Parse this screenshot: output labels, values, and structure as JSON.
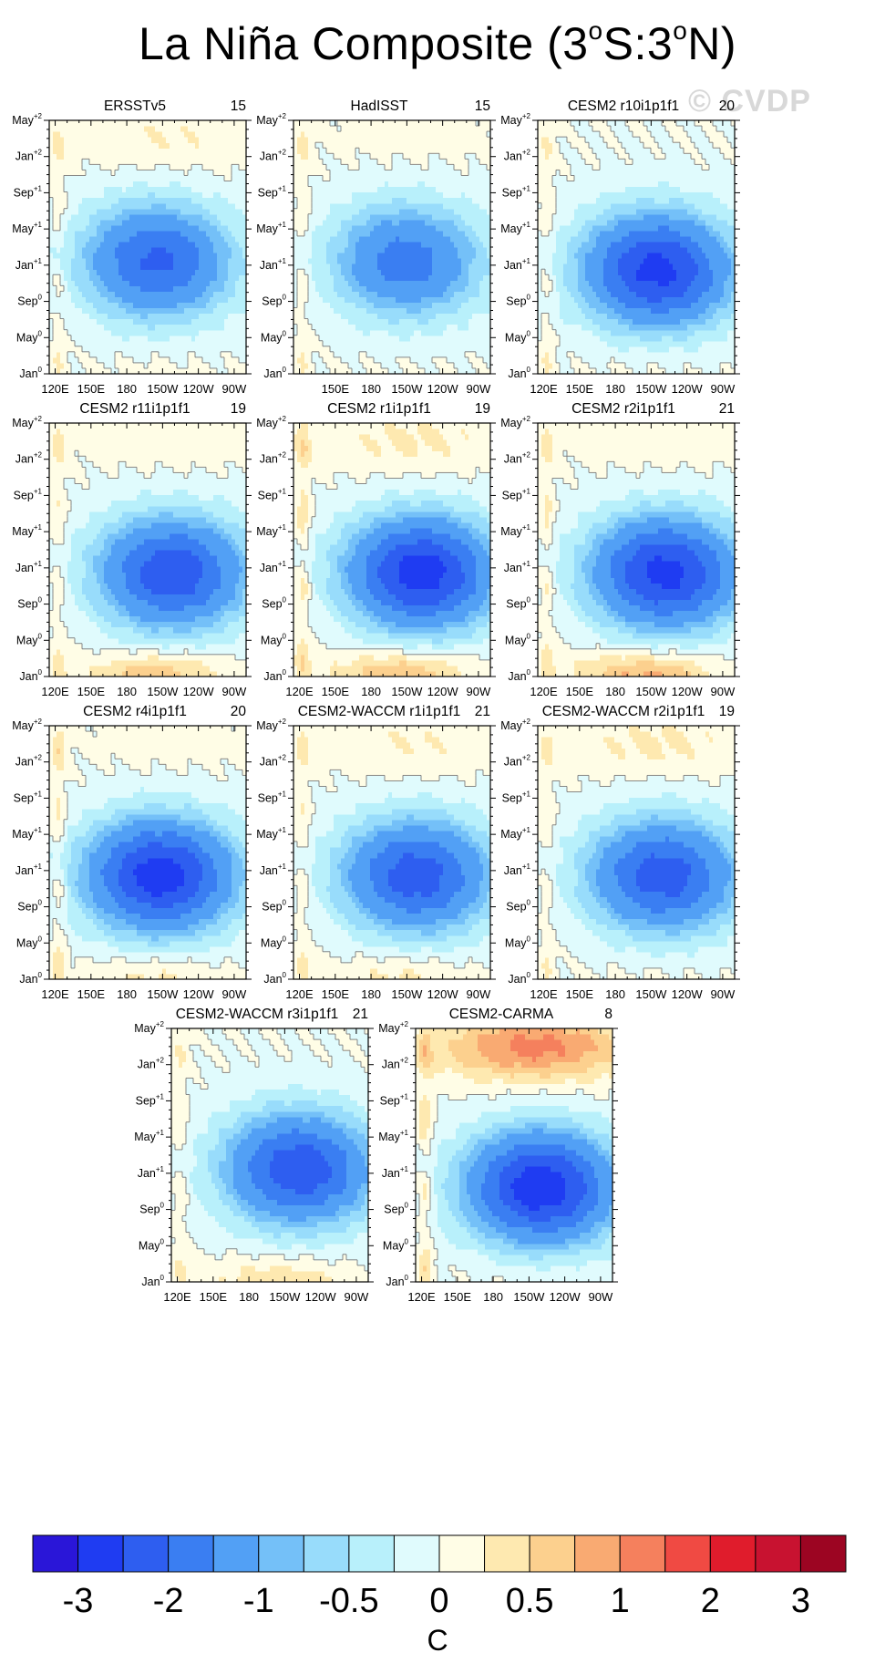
{
  "figure": {
    "title_parts": [
      "La Niña Composite (3",
      "o",
      "S:3",
      "o",
      "N)"
    ],
    "watermark": "© CVDP",
    "units_label": "C"
  },
  "colors": {
    "palette": [
      "#2a16d8",
      "#1f3cf2",
      "#2e5ef0",
      "#3a7ef2",
      "#52a0f5",
      "#74c0f8",
      "#98dcfb",
      "#b8f0fb",
      "#e0fbfd",
      "#fffde6",
      "#fee9b0",
      "#fcd08e",
      "#f9aa72",
      "#f5805d",
      "#f04a43",
      "#e01c2c",
      "#c81230",
      "#9c0522"
    ],
    "contour_line": "#7a7a7a"
  },
  "chart_data": [
    {
      "type": "heatmap",
      "title": "ERSSTv5",
      "count": "15",
      "x_tick_labels": [
        "120E",
        "150E",
        "180",
        "150W",
        "120W",
        "90W"
      ],
      "y_tick_labels": [
        "Jan",
        "May",
        "Sep",
        "Jan",
        "May",
        "Sep",
        "Jan",
        "May"
      ],
      "y_tick_superscripts": [
        "0",
        "0",
        "0",
        "+1",
        "+1",
        "+1",
        "+2",
        "+2"
      ],
      "x_range_lon": [
        115,
        280
      ],
      "y_range_months": [
        0,
        28
      ],
      "anomaly": {
        "core_lon": 205,
        "core_month": 12.5,
        "core_min": -2.1,
        "west_warm": 0.3,
        "winter_plus2_warm": 0.25,
        "spring_warm": 0.1
      }
    },
    {
      "type": "heatmap",
      "title": "HadISST",
      "count": "15",
      "x_tick_labels": [
        "",
        "150E",
        "180",
        "150W",
        "120W",
        "90W"
      ],
      "y_tick_labels": [
        "Jan",
        "May",
        "Sep",
        "Jan",
        "May",
        "Sep",
        "Jan",
        "May"
      ],
      "y_tick_superscripts": [
        "0",
        "0",
        "0",
        "+1",
        "+1",
        "+1",
        "+2",
        "+2"
      ],
      "x_range_lon": [
        115,
        280
      ],
      "y_range_months": [
        0,
        28
      ],
      "anomaly": {
        "core_lon": 210,
        "core_month": 12.5,
        "core_min": -1.75,
        "west_warm": 0.3,
        "winter_plus2_warm": 0.1,
        "spring_warm": 0.05
      }
    },
    {
      "type": "heatmap",
      "title": "CESM2 r10i1p1f1",
      "count": "20",
      "x_tick_labels": [
        "120E",
        "150E",
        "180",
        "150W",
        "120W",
        "90W"
      ],
      "y_tick_labels": [
        "Jan",
        "May",
        "Sep",
        "Jan",
        "May",
        "Sep",
        "Jan",
        "May"
      ],
      "y_tick_superscripts": [
        "0",
        "0",
        "0",
        "+1",
        "+1",
        "+1",
        "+2",
        "+2"
      ],
      "x_range_lon": [
        115,
        280
      ],
      "y_range_months": [
        0,
        28
      ],
      "anomaly": {
        "core_lon": 215,
        "core_month": 11.5,
        "core_min": -2.7,
        "west_warm": 0.3,
        "winter_plus2_warm": 0.0,
        "spring_warm": 0.1
      }
    },
    {
      "type": "heatmap",
      "title": "CESM2 r11i1p1f1",
      "count": "19",
      "x_tick_labels": [
        "120E",
        "150E",
        "180",
        "150W",
        "120W",
        "90W"
      ],
      "y_tick_labels": [
        "Jan",
        "May",
        "Sep",
        "Jan",
        "May",
        "Sep",
        "Jan",
        "May"
      ],
      "y_tick_superscripts": [
        "0",
        "0",
        "0",
        "+1",
        "+1",
        "+1",
        "+2",
        "+2"
      ],
      "x_range_lon": [
        115,
        280
      ],
      "y_range_months": [
        0,
        28
      ],
      "anomaly": {
        "core_lon": 218,
        "core_month": 11.5,
        "core_min": -2.4,
        "west_warm": 0.35,
        "winter_plus2_warm": 0.15,
        "spring_warm": 0.7
      }
    },
    {
      "type": "heatmap",
      "title": "CESM2 r1i1p1f1",
      "count": "19",
      "x_tick_labels": [
        "120E",
        "150E",
        "180",
        "150W",
        "120W",
        "90W"
      ],
      "y_tick_labels": [
        "Jan",
        "May",
        "Sep",
        "Jan",
        "May",
        "Sep",
        "Jan",
        "May"
      ],
      "y_tick_superscripts": [
        "0",
        "0",
        "0",
        "+1",
        "+1",
        "+1",
        "+2",
        "+2"
      ],
      "x_range_lon": [
        115,
        280
      ],
      "y_range_months": [
        0,
        28
      ],
      "anomaly": {
        "core_lon": 222,
        "core_month": 11.5,
        "core_min": -2.8,
        "west_warm": 0.5,
        "winter_plus2_warm": 0.3,
        "spring_warm": 0.8
      }
    },
    {
      "type": "heatmap",
      "title": "CESM2 r2i1p1f1",
      "count": "21",
      "x_tick_labels": [
        "120E",
        "150E",
        "180",
        "150W",
        "120W",
        "90W"
      ],
      "y_tick_labels": [
        "Jan",
        "May",
        "Sep",
        "Jan",
        "May",
        "Sep",
        "Jan",
        "May"
      ],
      "y_tick_superscripts": [
        "0",
        "0",
        "0",
        "+1",
        "+1",
        "+1",
        "+2",
        "+2"
      ],
      "x_range_lon": [
        115,
        280
      ],
      "y_range_months": [
        0,
        28
      ],
      "anomaly": {
        "core_lon": 222,
        "core_month": 11.5,
        "core_min": -2.7,
        "west_warm": 0.4,
        "winter_plus2_warm": 0.15,
        "spring_warm": 0.85
      }
    },
    {
      "type": "heatmap",
      "title": "CESM2 r4i1p1f1",
      "count": "20",
      "x_tick_labels": [
        "120E",
        "150E",
        "180",
        "150W",
        "120W",
        "90W"
      ],
      "y_tick_labels": [
        "Jan",
        "May",
        "Sep",
        "Jan",
        "May",
        "Sep",
        "Jan",
        "May"
      ],
      "y_tick_superscripts": [
        "0",
        "0",
        "0",
        "+1",
        "+1",
        "+1",
        "+2",
        "+2"
      ],
      "x_range_lon": [
        115,
        280
      ],
      "y_range_months": [
        0,
        28
      ],
      "anomaly": {
        "core_lon": 208,
        "core_month": 11.5,
        "core_min": -2.8,
        "west_warm": 0.45,
        "winter_plus2_warm": 0.1,
        "spring_warm": 0.35
      }
    },
    {
      "type": "heatmap",
      "title": "CESM2-WACCM r1i1p1f1",
      "count": "21",
      "x_tick_labels": [
        "120E",
        "150E",
        "180",
        "150W",
        "120W",
        "90W"
      ],
      "y_tick_labels": [
        "Jan",
        "May",
        "Sep",
        "Jan",
        "May",
        "Sep",
        "Jan",
        "May"
      ],
      "y_tick_superscripts": [
        "0",
        "0",
        "0",
        "+1",
        "+1",
        "+1",
        "+2",
        "+2"
      ],
      "x_range_lon": [
        115,
        280
      ],
      "y_range_months": [
        0,
        28
      ],
      "anomaly": {
        "core_lon": 218,
        "core_month": 11.5,
        "core_min": -2.3,
        "west_warm": 0.35,
        "winter_plus2_warm": 0.25,
        "spring_warm": 0.35
      }
    },
    {
      "type": "heatmap",
      "title": "CESM2-WACCM r2i1p1f1",
      "count": "19",
      "x_tick_labels": [
        "120E",
        "150E",
        "180",
        "150W",
        "120W",
        "90W"
      ],
      "y_tick_labels": [
        "Jan",
        "May",
        "Sep",
        "Jan",
        "May",
        "Sep",
        "Jan",
        "May"
      ],
      "y_tick_superscripts": [
        "0",
        "0",
        "0",
        "+1",
        "+1",
        "+1",
        "+2",
        "+2"
      ],
      "x_range_lon": [
        115,
        280
      ],
      "y_range_months": [
        0,
        28
      ],
      "anomaly": {
        "core_lon": 220,
        "core_month": 11.5,
        "core_min": -2.3,
        "west_warm": 0.3,
        "winter_plus2_warm": 0.3,
        "spring_warm": 0.1
      }
    },
    {
      "type": "heatmap",
      "title": "CESM2-WACCM r3i1p1f1",
      "count": "21",
      "x_tick_labels": [
        "120E",
        "150E",
        "180",
        "150W",
        "120W",
        "90W"
      ],
      "y_tick_labels": [
        "Jan",
        "May",
        "Sep",
        "Jan",
        "May",
        "Sep",
        "Jan",
        "May"
      ],
      "y_tick_superscripts": [
        "0",
        "0",
        "0",
        "+1",
        "+1",
        "+1",
        "+2",
        "+2"
      ],
      "x_range_lon": [
        115,
        280
      ],
      "y_range_months": [
        0,
        28
      ],
      "anomaly": {
        "core_lon": 222,
        "core_month": 12.5,
        "core_min": -2.4,
        "west_warm": 0.3,
        "winter_plus2_warm": 0.0,
        "spring_warm": 0.45
      }
    },
    {
      "type": "heatmap",
      "title": "CESM2-CARMA",
      "count": "8",
      "x_tick_labels": [
        "120E",
        "150E",
        "180",
        "150W",
        "120W",
        "90W"
      ],
      "y_tick_labels": [
        "Jan",
        "May",
        "Sep",
        "Jan",
        "May",
        "Sep",
        "Jan",
        "May"
      ],
      "y_tick_superscripts": [
        "0",
        "0",
        "0",
        "+1",
        "+1",
        "+1",
        "+2",
        "+2"
      ],
      "x_range_lon": [
        115,
        280
      ],
      "y_range_months": [
        0,
        28
      ],
      "anomaly": {
        "core_lon": 220,
        "core_month": 10.5,
        "core_min": -2.9,
        "west_warm": 0.5,
        "winter_plus2_warm": 1.1,
        "spring_warm": 0.1
      }
    },
    {
      "type": "colorbar",
      "levels": [
        "-3",
        "-2",
        "-1",
        "-0.5",
        "0",
        "0.5",
        "1",
        "2",
        "3"
      ],
      "xlabel": "C"
    }
  ]
}
